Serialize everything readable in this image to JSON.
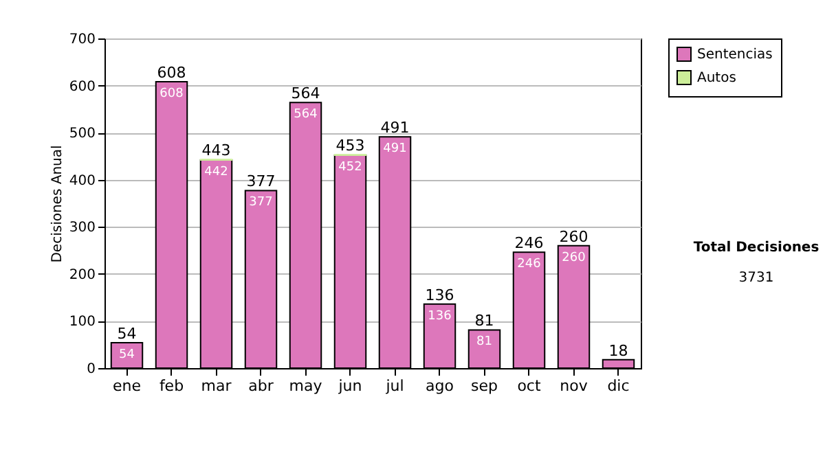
{
  "chart_data": {
    "type": "bar",
    "ylabel": "Decisiones Anual",
    "categories": [
      "ene",
      "feb",
      "mar",
      "abr",
      "may",
      "jun",
      "jul",
      "ago",
      "sep",
      "oct",
      "nov",
      "dic"
    ],
    "series": [
      {
        "name": "Sentencias",
        "color": "#dd77bb",
        "values": [
          54,
          608,
          442,
          377,
          564,
          452,
          491,
          136,
          81,
          246,
          260,
          18
        ],
        "value_labels": [
          "54",
          "608",
          "442",
          "377",
          "564",
          "452",
          "491",
          "136",
          "81",
          "246",
          "260",
          null
        ]
      },
      {
        "name": "Autos",
        "color": "#ccee99",
        "values": [
          0,
          0,
          1,
          0,
          0,
          1,
          0,
          0,
          0,
          0,
          0,
          0
        ]
      }
    ],
    "stacked": true,
    "totals": [
      "54",
      "608",
      "443",
      "377",
      "564",
      "453",
      "491",
      "136",
      "81",
      "246",
      "260",
      "18"
    ],
    "ylim": [
      0,
      700
    ],
    "yticks": [
      0,
      100,
      200,
      300,
      400,
      500,
      600,
      700
    ],
    "grid": "y",
    "legend": "right",
    "annotations": [
      "Total Decisiones",
      "3731"
    ]
  }
}
